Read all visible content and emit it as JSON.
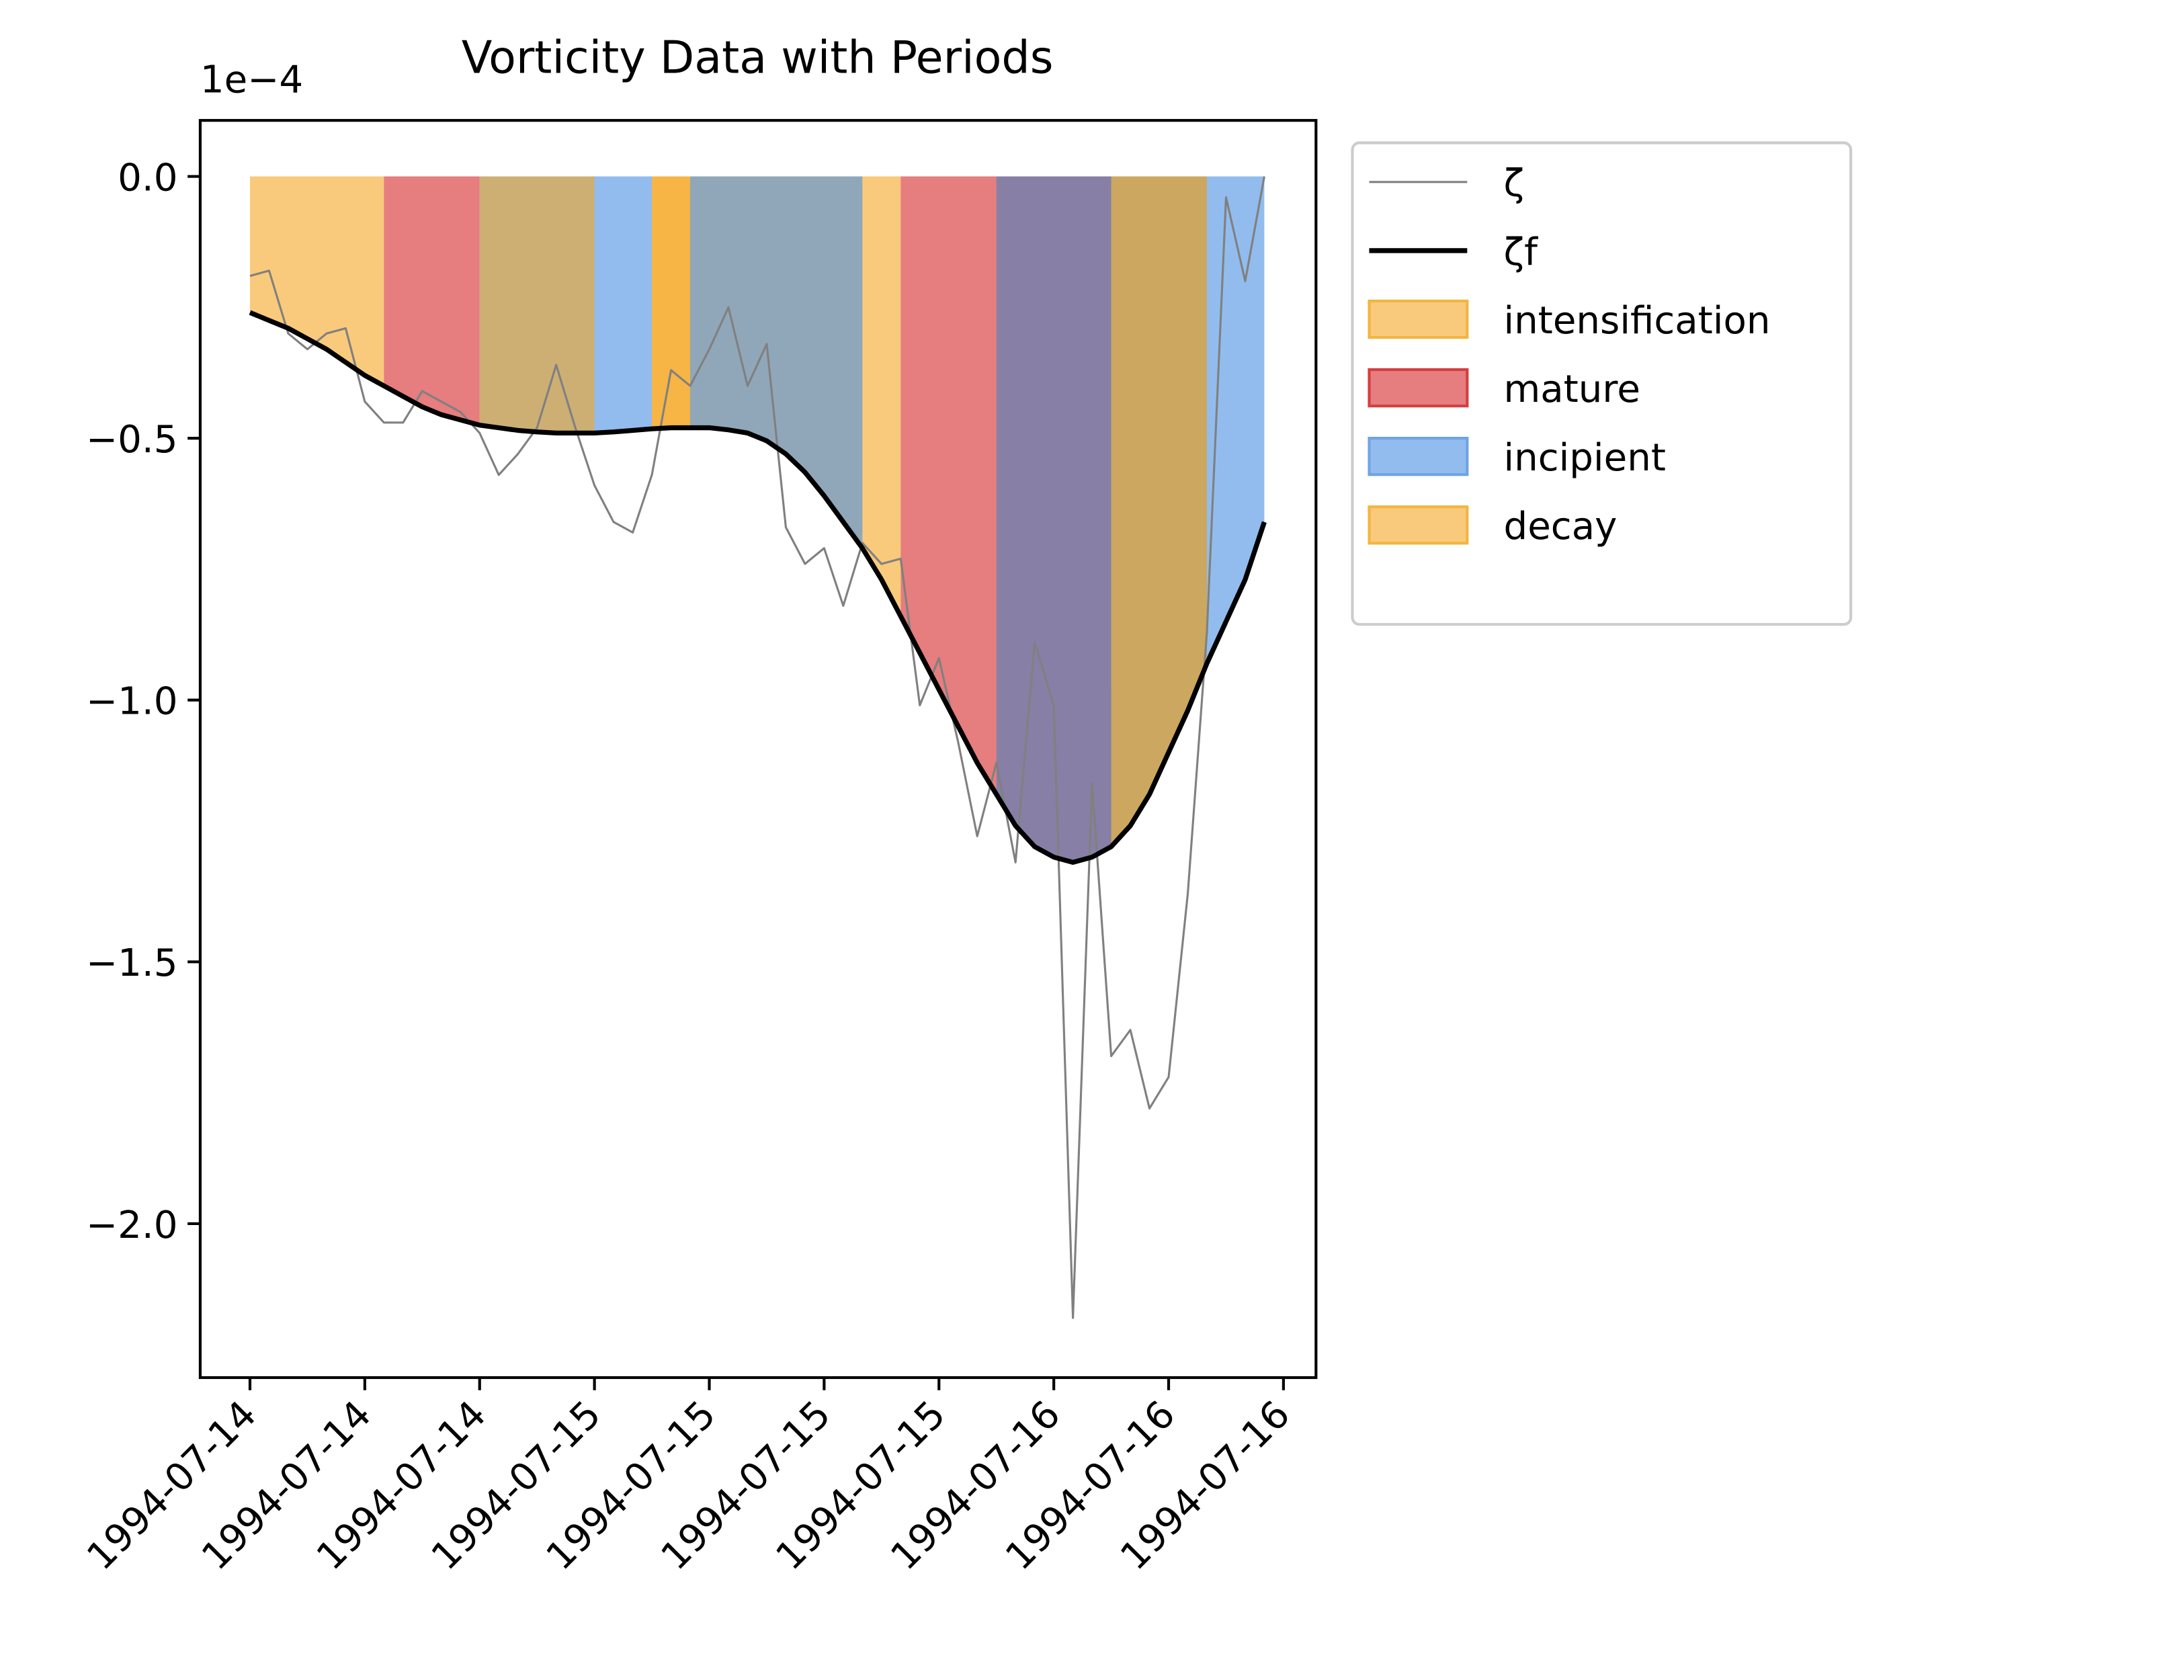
{
  "chart_data": {
    "type": "line",
    "title": "Vorticity Data with Periods",
    "y_offset_label": "1e−4",
    "x": [
      0,
      1,
      2,
      3,
      4,
      5,
      6,
      7,
      8,
      9,
      10,
      11,
      12,
      13,
      14,
      15,
      16,
      17,
      18,
      19,
      20,
      21,
      22,
      23,
      24,
      25,
      26,
      27,
      28,
      29,
      30,
      31,
      32,
      33,
      34,
      35,
      36,
      37,
      38,
      39,
      40,
      41,
      42,
      43,
      44,
      45,
      46,
      47,
      48,
      49,
      50,
      51,
      52,
      53
    ],
    "xlim": [
      -2.6,
      55.7
    ],
    "xticks": [
      {
        "value": 0,
        "label": "1994-07-14"
      },
      {
        "value": 6,
        "label": "1994-07-14"
      },
      {
        "value": 12,
        "label": "1994-07-14"
      },
      {
        "value": 18,
        "label": "1994-07-15"
      },
      {
        "value": 24,
        "label": "1994-07-15"
      },
      {
        "value": 30,
        "label": "1994-07-15"
      },
      {
        "value": 36,
        "label": "1994-07-15"
      },
      {
        "value": 42,
        "label": "1994-07-16"
      },
      {
        "value": 48,
        "label": "1994-07-16"
      },
      {
        "value": 54,
        "label": "1994-07-16"
      }
    ],
    "ylim": [
      -2.294,
      0.107
    ],
    "yticks": [
      {
        "value": 0,
        "label": "0.0"
      },
      {
        "value": -0.5,
        "label": "−0.5"
      },
      {
        "value": -1,
        "label": "−1.0"
      },
      {
        "value": -1.5,
        "label": "−1.5"
      },
      {
        "value": -2,
        "label": "−2.0"
      }
    ],
    "series": [
      {
        "name": "ζ",
        "color": "#808080",
        "width": 1.5,
        "values": [
          -0.19,
          -0.18,
          -0.3,
          -0.33,
          -0.3,
          -0.29,
          -0.43,
          -0.47,
          -0.47,
          -0.41,
          -0.43,
          -0.45,
          -0.49,
          -0.57,
          -0.53,
          -0.48,
          -0.36,
          -0.48,
          -0.59,
          -0.66,
          -0.68,
          -0.57,
          -0.37,
          -0.4,
          -0.33,
          -0.25,
          -0.4,
          -0.32,
          -0.67,
          -0.74,
          -0.71,
          -0.82,
          -0.7,
          -0.74,
          -0.73,
          -1.01,
          -0.92,
          -1.08,
          -1.26,
          -1.12,
          -1.31,
          -0.89,
          -1.01,
          -2.18,
          -1.16,
          -1.68,
          -1.63,
          -1.78,
          -1.72,
          -1.37,
          -0.87,
          -0.04,
          -0.2,
          0.0
        ]
      },
      {
        "name": "ζf",
        "color": "#000000",
        "width": 3.5,
        "values": [
          -0.26,
          -0.275,
          -0.29,
          -0.31,
          -0.33,
          -0.355,
          -0.38,
          -0.4,
          -0.42,
          -0.44,
          -0.455,
          -0.465,
          -0.475,
          -0.48,
          -0.485,
          -0.488,
          -0.49,
          -0.49,
          -0.49,
          -0.488,
          -0.485,
          -0.482,
          -0.48,
          -0.48,
          -0.48,
          -0.484,
          -0.49,
          -0.505,
          -0.53,
          -0.565,
          -0.61,
          -0.66,
          -0.71,
          -0.77,
          -0.84,
          -0.91,
          -0.98,
          -1.05,
          -1.12,
          -1.18,
          -1.24,
          -1.28,
          -1.3,
          -1.31,
          -1.3,
          -1.28,
          -1.24,
          -1.18,
          -1.1,
          -1.02,
          -0.93,
          -0.85,
          -0.77,
          -0.66
        ]
      }
    ],
    "periods": [
      {
        "name": "intensification",
        "color": "#f5a623",
        "edge": "#f3b541",
        "spans": [
          [
            0,
            7
          ],
          [
            21,
            34
          ],
          [
            39,
            50
          ]
        ]
      },
      {
        "name": "mature",
        "color": "#d62728",
        "edge": "#d43f3f",
        "spans": [
          [
            7,
            12
          ],
          [
            34,
            39
          ],
          [
            39,
            45
          ]
        ]
      },
      {
        "name": "incipient",
        "color": "#4a90e2",
        "edge": "#6fa3e6",
        "spans": [
          [
            12,
            21
          ],
          [
            23,
            32
          ],
          [
            39,
            53
          ]
        ]
      },
      {
        "name": "decay",
        "color": "#f5a623",
        "edge": "#f3b541",
        "spans": [
          [
            12,
            18
          ],
          [
            21,
            23
          ],
          [
            45,
            50
          ]
        ]
      }
    ]
  }
}
